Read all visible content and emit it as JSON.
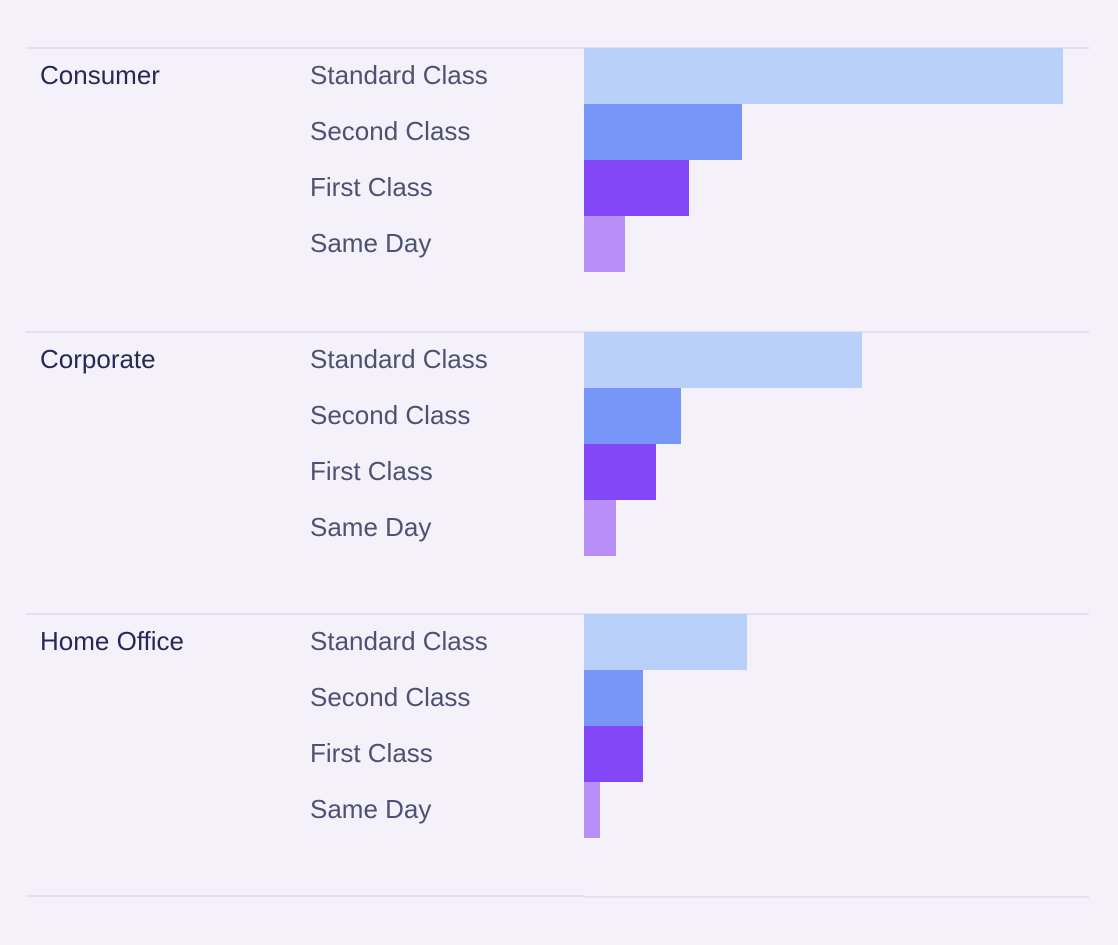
{
  "chart_data": {
    "type": "bar",
    "orientation": "horizontal",
    "grouped_by": "segment",
    "title": "",
    "xlabel": "",
    "ylabel": "",
    "xlim": [
      0,
      100
    ],
    "grid": false,
    "legend": "none",
    "categories": [
      "Standard Class",
      "Second Class",
      "First Class",
      "Same Day"
    ],
    "colors": [
      "#b9d0fb",
      "#7896f7",
      "#8447f7",
      "#b98ef6"
    ],
    "groups": [
      {
        "name": "Consumer",
        "values": [
          100,
          33,
          22,
          8.5
        ]
      },
      {
        "name": "Corporate",
        "values": [
          58,
          20.3,
          15,
          6.7
        ]
      },
      {
        "name": "Home Office",
        "values": [
          34.1,
          12.3,
          12.3,
          3.3
        ]
      }
    ]
  }
}
